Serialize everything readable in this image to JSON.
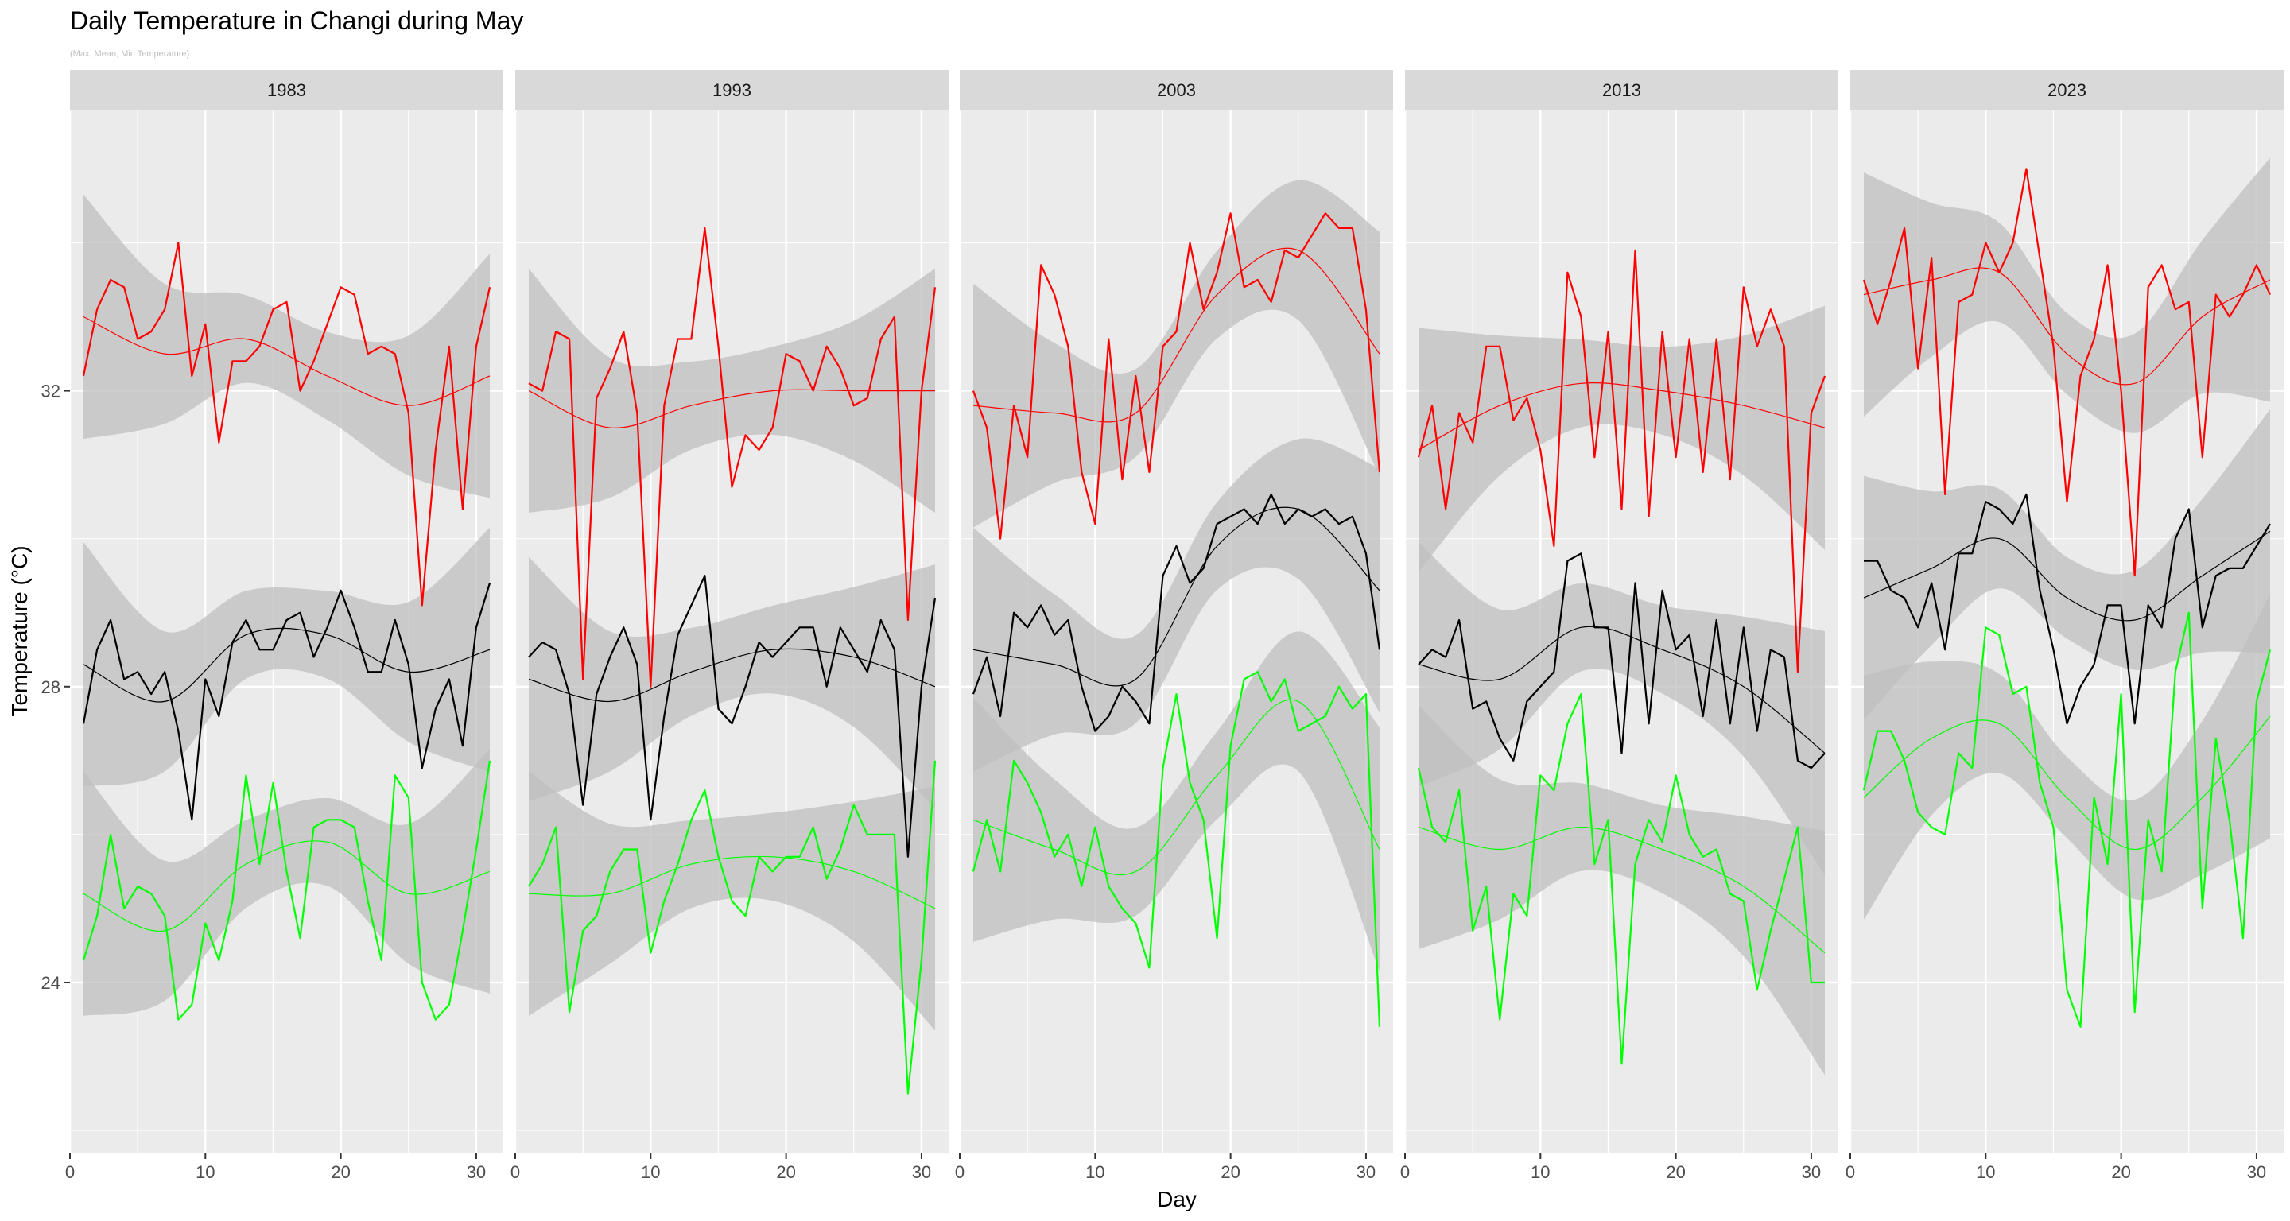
{
  "chart_data": {
    "type": "line",
    "title": "Daily Temperature in Changi during May",
    "subtitle": "(Max, Mean, Min Temperature)",
    "xlabel": "Day",
    "ylabel": "Temperature (°C)",
    "xlim": [
      0,
      32
    ],
    "ylim": [
      21.7,
      35.8
    ],
    "x_ticks": [
      0,
      10,
      20,
      30
    ],
    "y_ticks": [
      24,
      28,
      32
    ],
    "grid": true,
    "smoothing": "loess with grey confidence band",
    "colors": {
      "max": "#ff0000",
      "mean": "#000000",
      "min": "#00ff00",
      "ribbon": "#bfbfbf",
      "panel_bg": "#ebebeb",
      "strip_bg": "#d9d9d9",
      "grid": "#ffffff"
    },
    "panels": [
      {
        "label": "1983",
        "series": [
          {
            "name": "Max",
            "values": [
              32.2,
              33.1,
              33.5,
              33.4,
              32.7,
              32.8,
              33.1,
              34.0,
              32.2,
              32.9,
              31.3,
              32.4,
              32.4,
              32.6,
              33.1,
              33.2,
              32.0,
              32.4,
              32.9,
              33.4,
              33.3,
              32.5,
              32.6,
              32.5,
              31.7,
              29.1,
              31.2,
              32.6,
              30.4,
              32.6,
              33.4
            ]
          },
          {
            "name": "Mean",
            "values": [
              27.5,
              28.5,
              28.9,
              28.1,
              28.2,
              27.9,
              28.2,
              27.4,
              26.2,
              28.1,
              27.6,
              28.6,
              28.9,
              28.5,
              28.5,
              28.9,
              29.0,
              28.4,
              28.8,
              29.3,
              28.8,
              28.2,
              28.2,
              28.9,
              28.3,
              26.9,
              27.7,
              28.1,
              27.2,
              28.8,
              29.4
            ]
          },
          {
            "name": "Min",
            "values": [
              24.3,
              24.9,
              26.0,
              25.0,
              25.3,
              25.2,
              24.9,
              23.5,
              23.7,
              24.8,
              24.3,
              25.1,
              26.8,
              25.6,
              26.7,
              25.5,
              24.6,
              26.1,
              26.2,
              26.2,
              26.1,
              25.1,
              24.3,
              26.8,
              26.5,
              24.0,
              23.5,
              23.7,
              24.7,
              25.8,
              27.0
            ]
          },
          {
            "name": "Max trend",
            "values": [
              33.0,
              32.5,
              32.7,
              32.2,
              31.8,
              32.2
            ]
          },
          {
            "name": "Mean trend",
            "values": [
              28.3,
              27.8,
              28.7,
              28.7,
              28.2,
              28.5
            ]
          },
          {
            "name": "Min trend",
            "values": [
              25.2,
              24.7,
              25.6,
              25.9,
              25.2,
              25.5
            ]
          }
        ]
      },
      {
        "label": "1993",
        "series": [
          {
            "name": "Max",
            "values": [
              32.1,
              32.0,
              32.8,
              32.7,
              28.1,
              31.9,
              32.3,
              32.8,
              31.7,
              28.0,
              31.8,
              32.7,
              32.7,
              34.2,
              32.6,
              30.7,
              31.4,
              31.2,
              31.5,
              32.5,
              32.4,
              32.0,
              32.6,
              32.3,
              31.8,
              31.9,
              32.7,
              33.0,
              28.9,
              32.0,
              33.4
            ]
          },
          {
            "name": "Mean",
            "values": [
              28.4,
              28.6,
              28.5,
              27.9,
              26.4,
              27.9,
              28.4,
              28.8,
              28.3,
              26.2,
              27.6,
              28.7,
              29.1,
              29.5,
              27.7,
              27.5,
              28.0,
              28.6,
              28.4,
              28.6,
              28.8,
              28.8,
              28.0,
              28.8,
              28.5,
              28.2,
              28.9,
              28.5,
              25.7,
              28.0,
              29.2
            ]
          },
          {
            "name": "Min",
            "values": [
              25.3,
              25.6,
              26.1,
              23.6,
              24.7,
              24.9,
              25.5,
              25.8,
              25.8,
              24.4,
              25.1,
              25.6,
              26.2,
              26.6,
              25.7,
              25.1,
              24.9,
              25.7,
              25.5,
              25.7,
              25.7,
              26.1,
              25.4,
              25.8,
              26.4,
              26.0,
              26.0,
              26.0,
              22.5,
              24.3,
              27.0
            ]
          },
          {
            "name": "Max trend",
            "values": [
              32.0,
              31.5,
              31.8,
              32.0,
              32.0,
              32.0
            ]
          },
          {
            "name": "Mean trend",
            "values": [
              28.1,
              27.8,
              28.2,
              28.5,
              28.4,
              28.0
            ]
          },
          {
            "name": "Min trend",
            "values": [
              25.2,
              25.2,
              25.6,
              25.7,
              25.5,
              25.0
            ]
          }
        ]
      },
      {
        "label": "2003",
        "series": [
          {
            "name": "Max",
            "values": [
              32.0,
              31.5,
              30.0,
              31.8,
              31.1,
              33.7,
              33.3,
              32.6,
              30.9,
              30.2,
              32.7,
              30.8,
              32.2,
              30.9,
              32.6,
              32.8,
              34.0,
              33.1,
              33.6,
              34.4,
              33.4,
              33.5,
              33.2,
              33.9,
              33.8,
              34.1,
              34.4,
              34.2,
              34.2,
              33.1,
              30.9
            ]
          },
          {
            "name": "Mean",
            "values": [
              27.9,
              28.4,
              27.6,
              29.0,
              28.8,
              29.1,
              28.7,
              28.9,
              28.0,
              27.4,
              27.6,
              28.0,
              27.8,
              27.5,
              29.5,
              29.9,
              29.4,
              29.6,
              30.2,
              30.3,
              30.4,
              30.2,
              30.6,
              30.2,
              30.4,
              30.3,
              30.4,
              30.2,
              30.3,
              29.8,
              28.5
            ]
          },
          {
            "name": "Min",
            "values": [
              25.5,
              26.2,
              25.5,
              27.0,
              26.7,
              26.3,
              25.7,
              26.0,
              25.3,
              26.1,
              25.3,
              25.0,
              24.8,
              24.2,
              26.9,
              27.9,
              26.7,
              26.2,
              24.6,
              27.2,
              28.1,
              28.2,
              27.8,
              28.1,
              27.4,
              27.5,
              27.6,
              28.0,
              27.7,
              27.9,
              23.4
            ]
          },
          {
            "name": "Max trend",
            "values": [
              31.8,
              31.7,
              31.7,
              33.3,
              33.9,
              32.5
            ]
          },
          {
            "name": "Mean trend",
            "values": [
              28.5,
              28.3,
              28.1,
              29.9,
              30.4,
              29.3
            ]
          },
          {
            "name": "Min trend",
            "values": [
              26.2,
              25.8,
              25.5,
              26.8,
              27.8,
              25.8
            ]
          }
        ]
      },
      {
        "label": "2013",
        "series": [
          {
            "name": "Max",
            "values": [
              31.1,
              31.8,
              30.4,
              31.7,
              31.3,
              32.6,
              32.6,
              31.6,
              31.9,
              31.2,
              29.9,
              33.6,
              33.0,
              31.1,
              32.8,
              30.4,
              33.9,
              30.3,
              32.8,
              31.1,
              32.7,
              30.9,
              32.7,
              30.8,
              33.4,
              32.6,
              33.1,
              32.6,
              28.2,
              31.7,
              32.2
            ]
          },
          {
            "name": "Mean",
            "values": [
              28.3,
              28.5,
              28.4,
              28.9,
              27.7,
              27.8,
              27.3,
              27.0,
              27.8,
              28.0,
              28.2,
              29.7,
              29.8,
              28.8,
              28.8,
              27.1,
              29.4,
              27.5,
              29.3,
              28.5,
              28.7,
              27.6,
              28.9,
              27.5,
              28.8,
              27.4,
              28.5,
              28.4,
              27.0,
              26.9,
              27.1
            ]
          },
          {
            "name": "Min",
            "values": [
              26.9,
              26.1,
              25.9,
              26.6,
              24.7,
              25.3,
              23.5,
              25.2,
              24.9,
              26.8,
              26.6,
              27.5,
              27.9,
              25.6,
              26.2,
              22.9,
              25.6,
              26.2,
              25.9,
              26.8,
              26.0,
              25.7,
              25.8,
              25.2,
              25.1,
              23.9,
              24.7,
              25.4,
              26.1,
              24.0,
              24.0
            ]
          },
          {
            "name": "Max trend",
            "values": [
              31.2,
              31.8,
              32.1,
              32.0,
              31.8,
              31.5
            ]
          },
          {
            "name": "Mean trend",
            "values": [
              28.3,
              28.1,
              28.8,
              28.5,
              28.0,
              27.1
            ]
          },
          {
            "name": "Min trend",
            "values": [
              26.1,
              25.8,
              26.1,
              25.8,
              25.3,
              24.4
            ]
          }
        ]
      },
      {
        "label": "2023",
        "series": [
          {
            "name": "Max",
            "values": [
              33.5,
              32.9,
              33.5,
              34.2,
              32.3,
              33.8,
              30.6,
              33.2,
              33.3,
              34.0,
              33.6,
              34.0,
              35.0,
              33.8,
              32.6,
              30.5,
              32.2,
              32.7,
              33.7,
              32.0,
              29.5,
              33.4,
              33.7,
              33.1,
              33.2,
              31.1,
              33.3,
              33.0,
              33.3,
              33.7,
              33.3
            ]
          },
          {
            "name": "Mean",
            "values": [
              29.7,
              29.7,
              29.3,
              29.2,
              28.8,
              29.4,
              28.5,
              29.8,
              29.8,
              30.5,
              30.4,
              30.2,
              30.6,
              29.3,
              28.5,
              27.5,
              28.0,
              28.3,
              29.1,
              29.1,
              27.5,
              29.1,
              28.8,
              30.0,
              30.4,
              28.8,
              29.5,
              29.6,
              29.6,
              29.9,
              30.2
            ]
          },
          {
            "name": "Min",
            "values": [
              26.6,
              27.4,
              27.4,
              27.0,
              26.3,
              26.1,
              26.0,
              27.1,
              26.9,
              28.8,
              28.7,
              27.9,
              28.0,
              26.7,
              26.1,
              23.9,
              23.4,
              26.5,
              25.6,
              27.9,
              23.6,
              26.2,
              25.5,
              28.2,
              29.0,
              25.0,
              27.3,
              26.2,
              24.6,
              27.8,
              28.5
            ]
          },
          {
            "name": "Max trend",
            "values": [
              33.3,
              33.5,
              33.6,
              32.5,
              32.1,
              33.0,
              33.5
            ]
          },
          {
            "name": "Mean trend",
            "values": [
              29.2,
              29.6,
              30.0,
              29.2,
              28.9,
              29.5,
              30.1
            ]
          },
          {
            "name": "Min trend",
            "values": [
              26.5,
              27.3,
              27.5,
              26.5,
              25.8,
              26.5,
              27.6
            ]
          }
        ]
      }
    ]
  }
}
